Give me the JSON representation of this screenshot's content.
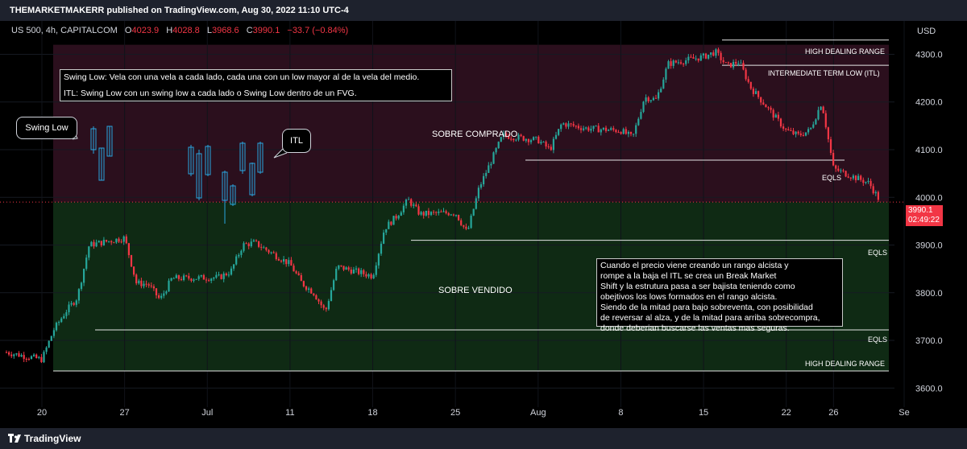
{
  "header": {
    "published": "THEMARKETMAKERR published on TradingView.com, Aug 30, 2022 11:10 UTC-4",
    "symbol": "US 500, 4h, CAPITALCOM",
    "o_label": "O",
    "o_value": "4023.9",
    "h_label": "H",
    "h_value": "4028.8",
    "l_label": "L",
    "l_value": "3968.6",
    "c_label": "C",
    "c_value": "3990.1",
    "change": "−33.7 (−0.84%)"
  },
  "price_tag": {
    "value": "3990.1",
    "countdown": "02:49:22"
  },
  "brand": "TradingView",
  "notes": {
    "definitions": [
      "Swing Low: Vela con una vela a cada lado, cada una con un low mayor al de la vela del medio.",
      "ITL: Swing Low con un swing low a cada lado o Swing Low dentro de un FVG."
    ],
    "explanation": [
      "Cuando el precio viene creando un rango alcista y",
      "rompe a la baja el ITL se crea un Break Market",
      "Shift y la estrutura pasa a ser bajista teniendo como",
      "obejtivos los lows formados en el rango alcista.",
      "Siendo de la mitad para bajo sobreventa, con posibilidad",
      "de reversar al alza, y de la mitad para arriba sobrecompra,",
      "donde deberian buscarse las ventas mas seguras."
    ],
    "swing_low_callout": "Swing Low",
    "itl_callout": "ITL"
  },
  "zones": {
    "upper": "SOBRE COMPRADO",
    "lower": "SOBRE VENDIDO"
  },
  "colors": {
    "up": "#26a69a",
    "down": "#f23645",
    "upper_zone": "#2b0f1d",
    "lower_zone": "#0f2a14",
    "accent": "#f23645"
  },
  "chart_data": {
    "type": "candlestick",
    "title": "US 500, 4h, CAPITALCOM",
    "y_unit": "USD",
    "ylim": [
      3560,
      4370
    ],
    "y_ticks": [
      3600,
      3700,
      3800,
      3900,
      4000,
      4100,
      4200,
      4300
    ],
    "y_tick_labels": [
      "3600.0",
      "3700.0",
      "3800.0",
      "3900.0",
      "4000.0",
      "4100.0",
      "4200.0",
      "4300.0"
    ],
    "x_ticks": [
      "20",
      "27",
      "Jul",
      "11",
      "18",
      "25",
      "Aug",
      "8",
      "15",
      "22",
      "26",
      "Se"
    ],
    "x_range": [
      "2022-06-17",
      "2022-08-30"
    ],
    "x_tick_dates": [
      "2022-06-20",
      "2022-06-27",
      "2022-07-04",
      "2022-07-11",
      "2022-07-18",
      "2022-07-25",
      "2022-08-01",
      "2022-08-08",
      "2022-08-15",
      "2022-08-22",
      "2022-08-26",
      "2022-09-01"
    ],
    "close_path": [
      [
        "2022-06-17",
        3675
      ],
      [
        "2022-06-20",
        3660
      ],
      [
        "2022-06-21",
        3722
      ],
      [
        "2022-06-22",
        3760
      ],
      [
        "2022-06-23",
        3790
      ],
      [
        "2022-06-24",
        3900
      ],
      [
        "2022-06-27",
        3915
      ],
      [
        "2022-06-28",
        3820
      ],
      [
        "2022-06-29",
        3818
      ],
      [
        "2022-06-30",
        3785
      ],
      [
        "2022-07-01",
        3830
      ],
      [
        "2022-07-05",
        3832
      ],
      [
        "2022-07-06",
        3845
      ],
      [
        "2022-07-07",
        3900
      ],
      [
        "2022-07-08",
        3905
      ],
      [
        "2022-07-11",
        3860
      ],
      [
        "2022-07-12",
        3820
      ],
      [
        "2022-07-13",
        3800
      ],
      [
        "2022-07-14",
        3760
      ],
      [
        "2022-07-15",
        3855
      ],
      [
        "2022-07-18",
        3835
      ],
      [
        "2022-07-19",
        3935
      ],
      [
        "2022-07-20",
        3960
      ],
      [
        "2022-07-21",
        3995
      ],
      [
        "2022-07-22",
        3965
      ],
      [
        "2022-07-25",
        3968
      ],
      [
        "2022-07-26",
        3925
      ],
      [
        "2022-07-27",
        4020
      ],
      [
        "2022-07-28",
        4075
      ],
      [
        "2022-07-29",
        4130
      ],
      [
        "2022-08-01",
        4120
      ],
      [
        "2022-08-02",
        4100
      ],
      [
        "2022-08-03",
        4155
      ],
      [
        "2022-08-04",
        4150
      ],
      [
        "2022-08-05",
        4145
      ],
      [
        "2022-08-08",
        4140
      ],
      [
        "2022-08-09",
        4125
      ],
      [
        "2022-08-10",
        4210
      ],
      [
        "2022-08-11",
        4205
      ],
      [
        "2022-08-12",
        4280
      ],
      [
        "2022-08-15",
        4295
      ],
      [
        "2022-08-16",
        4305
      ],
      [
        "2022-08-17",
        4275
      ],
      [
        "2022-08-18",
        4285
      ],
      [
        "2022-08-19",
        4230
      ],
      [
        "2022-08-22",
        4140
      ],
      [
        "2022-08-23",
        4130
      ],
      [
        "2022-08-24",
        4140
      ],
      [
        "2022-08-25",
        4200
      ],
      [
        "2022-08-26",
        4060
      ],
      [
        "2022-08-29",
        4030
      ],
      [
        "2022-08-30",
        3990
      ]
    ],
    "levels": [
      {
        "label": "HIGH DEALING RANGE",
        "value": 4330
      },
      {
        "label": "INTERMEDIATE TERM LOW (ITL)",
        "value": 4277
      },
      {
        "label": "EQLS",
        "value": 4078
      },
      {
        "label": "EQLS",
        "value": 3910
      },
      {
        "label": "EQLS",
        "value": 3722
      },
      {
        "label": "HIGH DEALING RANGE",
        "value": 3636
      }
    ],
    "equilibrium": 3990,
    "last_price": 3990.1
  }
}
